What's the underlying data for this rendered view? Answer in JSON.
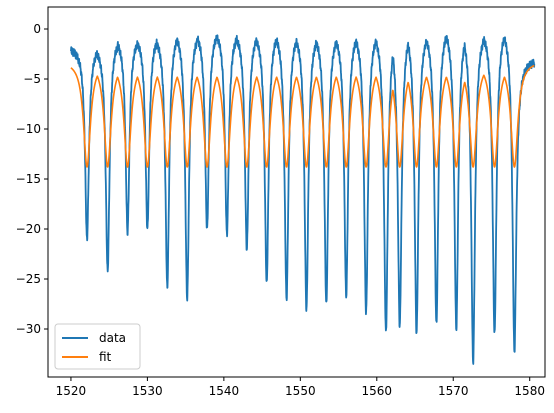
{
  "chart_data": {
    "type": "line",
    "xlim": [
      1517,
      1582
    ],
    "ylim": [
      -34.8,
      2.2
    ],
    "xticks": [
      1520,
      1530,
      1540,
      1550,
      1560,
      1570,
      1580
    ],
    "yticks": [
      0,
      -5,
      -10,
      -15,
      -20,
      -25,
      -30
    ],
    "grid": false,
    "legend": {
      "placement": "lower-left",
      "entries": [
        "data",
        "fit"
      ]
    },
    "period_nm": 2.5,
    "dip_centers_nm": [
      1522.1,
      1524.8,
      1527.4,
      1530.0,
      1532.6,
      1535.2,
      1537.8,
      1540.4,
      1543.0,
      1545.6,
      1548.2,
      1550.8,
      1553.4,
      1556.0,
      1558.6,
      1561.2,
      1563.0,
      1565.2,
      1567.8,
      1570.4,
      1572.6,
      1575.4,
      1578.0
    ],
    "series": [
      {
        "name": "data",
        "color": "#1f77b4",
        "x_range": [
          1520,
          1580.6
        ],
        "peak_levels": [
          -1.8,
          -1.5,
          -0.6,
          -0.5,
          -0.3,
          0.2,
          0.1,
          0.2,
          0.0,
          0.0,
          0.2,
          0.1,
          0.0,
          0.0,
          0.1,
          0.2,
          0.3,
          0.5,
          0.3,
          0.7,
          0.5,
          0.3,
          0.7,
          -3.0
        ],
        "dip_minima": [
          -21.0,
          -24.2,
          -20.3,
          -20.0,
          -25.8,
          -26.9,
          -20.0,
          -20.5,
          -22.0,
          -25.4,
          -27.0,
          -28.0,
          -27.5,
          -26.7,
          -28.3,
          -30.3,
          -29.7,
          -30.4,
          -29.5,
          -30.0,
          -33.3,
          -30.5,
          -32.3
        ]
      },
      {
        "name": "fit",
        "color": "#ff7f0e",
        "x_range": [
          1520,
          1580.6
        ],
        "peak_level": -3.2,
        "dip_minimum": -13.8
      }
    ]
  }
}
